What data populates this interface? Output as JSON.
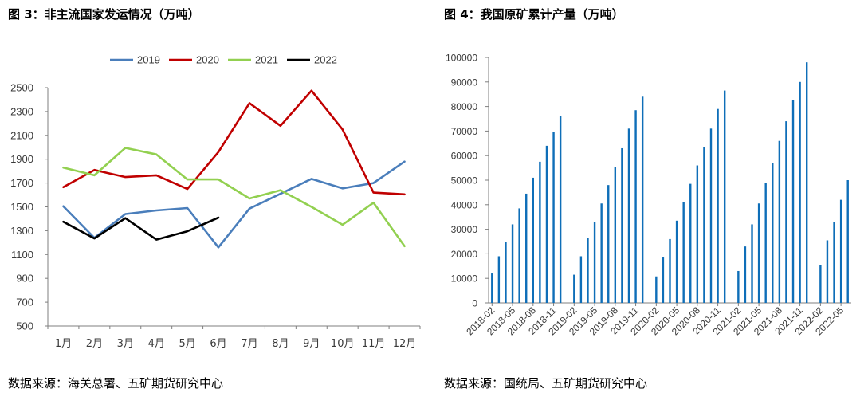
{
  "left": {
    "title": "图 3：非主流国家发运情况（万吨）",
    "source": "数据来源：海关总署、五矿期货研究中心"
  },
  "right": {
    "title": "图 4：我国原矿累计产量（万吨）",
    "source": "数据来源：国统局、五矿期货研究中心"
  },
  "chart_data": [
    {
      "type": "line",
      "categories": [
        "1月",
        "2月",
        "3月",
        "4月",
        "5月",
        "6月",
        "7月",
        "8月",
        "9月",
        "10月",
        "11月",
        "12月"
      ],
      "series": [
        {
          "name": "2019",
          "color": "#4a7ebb",
          "values": [
            1505,
            1240,
            1440,
            1470,
            1490,
            1160,
            1485,
            1610,
            1735,
            1655,
            1700,
            1880
          ]
        },
        {
          "name": "2020",
          "color": "#c00000",
          "values": [
            1665,
            1810,
            1750,
            1765,
            1650,
            1960,
            2370,
            2180,
            2475,
            2150,
            1620,
            1605
          ]
        },
        {
          "name": "2021",
          "color": "#92d050",
          "values": [
            1830,
            1765,
            1995,
            1940,
            1730,
            1730,
            1570,
            1640,
            1500,
            1350,
            1535,
            1170
          ]
        },
        {
          "name": "2022",
          "color": "#000000",
          "values": [
            1375,
            1235,
            1405,
            1225,
            1295,
            1410,
            null,
            null,
            null,
            null,
            null,
            null
          ]
        }
      ],
      "yticks": [
        500,
        700,
        900,
        1100,
        1300,
        1500,
        1700,
        1900,
        2100,
        2300,
        2500
      ],
      "ylim": [
        500,
        2500
      ],
      "legend": "top"
    },
    {
      "type": "bar",
      "color": "#0e6eb8",
      "categories": [
        "2018-02",
        "2018-03",
        "2018-04",
        "2018-05",
        "2018-06",
        "2018-07",
        "2018-08",
        "2018-09",
        "2018-10",
        "2018-11",
        "2018-12",
        "2019-01",
        "2019-02",
        "2019-03",
        "2019-04",
        "2019-05",
        "2019-06",
        "2019-07",
        "2019-08",
        "2019-09",
        "2019-10",
        "2019-11",
        "2019-12",
        "2020-01",
        "2020-02",
        "2020-03",
        "2020-04",
        "2020-05",
        "2020-06",
        "2020-07",
        "2020-08",
        "2020-09",
        "2020-10",
        "2020-11",
        "2020-12",
        "2021-01",
        "2021-02",
        "2021-03",
        "2021-04",
        "2021-05",
        "2021-06",
        "2021-07",
        "2021-08",
        "2021-09",
        "2021-10",
        "2021-11",
        "2021-12",
        "2022-01",
        "2022-02",
        "2022-03",
        "2022-04",
        "2022-05",
        "2022-06"
      ],
      "values": [
        12000,
        19000,
        25000,
        32000,
        38500,
        44500,
        51000,
        57500,
        64000,
        69500,
        76000,
        null,
        11500,
        19000,
        26500,
        33000,
        40500,
        48000,
        55500,
        63000,
        71000,
        78500,
        84000,
        null,
        10800,
        18500,
        26000,
        33500,
        41000,
        48500,
        56000,
        63500,
        71000,
        79000,
        86500,
        null,
        13000,
        23000,
        32000,
        40500,
        49000,
        57000,
        66000,
        74000,
        82500,
        90000,
        98000,
        null,
        15500,
        25500,
        33000,
        42000,
        50000
      ],
      "xticks": [
        "2018-02",
        "2018-05",
        "2018-08",
        "2018-11",
        "2019-02",
        "2019-05",
        "2019-08",
        "2019-11",
        "2020-02",
        "2020-05",
        "2020-08",
        "2020-11",
        "2021-02",
        "2021-05",
        "2021-08",
        "2021-11",
        "2022-02",
        "2022-05"
      ],
      "yticks": [
        0,
        10000,
        20000,
        30000,
        40000,
        50000,
        60000,
        70000,
        80000,
        90000,
        100000
      ],
      "ylim": [
        0,
        100000
      ],
      "grid": false,
      "legend": "none"
    }
  ]
}
